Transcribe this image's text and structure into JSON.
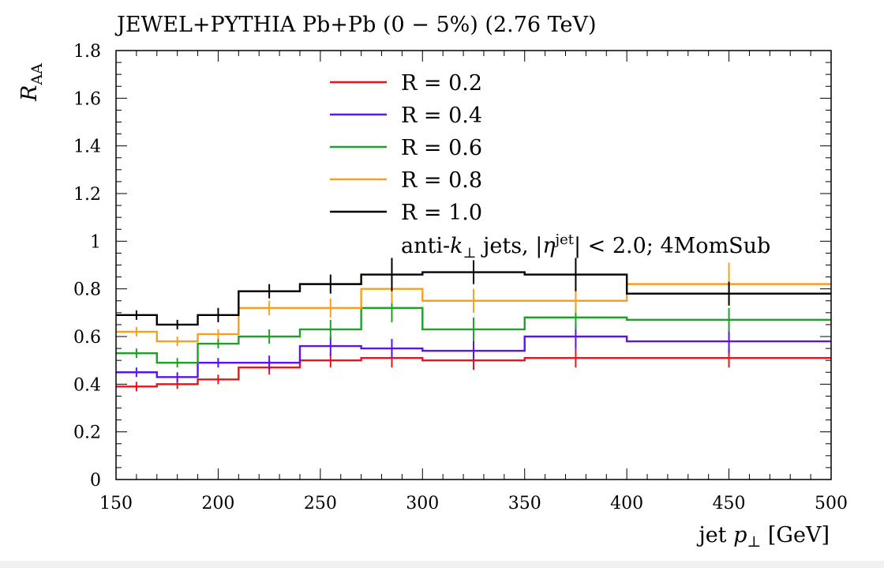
{
  "chart_data": {
    "type": "line",
    "title": "JEWEL+PYTHIA Pb+Pb (0 − 5%) (2.76 TeV)",
    "xlabel": "jet p⊥ [GeV]",
    "ylabel": "RAA",
    "xlim": [
      150,
      500
    ],
    "ylim": [
      0,
      1.8
    ],
    "x_ticks": [
      "150",
      "200",
      "250",
      "300",
      "350",
      "400",
      "450",
      "500"
    ],
    "y_ticks": [
      "0",
      "0.2",
      "0.4",
      "0.6",
      "0.8",
      "1",
      "1.2",
      "1.4",
      "1.6",
      "1.8"
    ],
    "bin_edges": [
      150,
      170,
      190,
      210,
      240,
      270,
      300,
      350,
      400,
      500
    ],
    "legend_note": "anti-k⊥ jets, |ηjet| < 2.0; 4MomSub",
    "legend_position": "top-center",
    "series": [
      {
        "name": "R = 0.2",
        "color": "#e8141c",
        "values": [
          0.39,
          0.4,
          0.42,
          0.47,
          0.5,
          0.51,
          0.5,
          0.51,
          0.51
        ],
        "errors": [
          0.02,
          0.02,
          0.02,
          0.03,
          0.03,
          0.04,
          0.04,
          0.04,
          0.04
        ]
      },
      {
        "name": "R = 0.4",
        "color": "#5b14e8",
        "values": [
          0.45,
          0.43,
          0.49,
          0.49,
          0.56,
          0.55,
          0.54,
          0.6,
          0.58
        ],
        "errors": [
          0.02,
          0.02,
          0.02,
          0.03,
          0.04,
          0.04,
          0.04,
          0.05,
          0.05
        ]
      },
      {
        "name": "R = 0.6",
        "color": "#1ea02a",
        "values": [
          0.53,
          0.49,
          0.57,
          0.6,
          0.63,
          0.72,
          0.63,
          0.68,
          0.67
        ],
        "errors": [
          0.02,
          0.02,
          0.02,
          0.03,
          0.04,
          0.06,
          0.05,
          0.05,
          0.05
        ]
      },
      {
        "name": "R = 0.8",
        "color": "#f5a01e",
        "values": [
          0.62,
          0.58,
          0.61,
          0.72,
          0.72,
          0.8,
          0.75,
          0.75,
          0.82
        ],
        "errors": [
          0.02,
          0.02,
          0.02,
          0.03,
          0.04,
          0.06,
          0.05,
          0.05,
          0.09
        ]
      },
      {
        "name": "R = 1.0",
        "color": "#000000",
        "values": [
          0.69,
          0.65,
          0.69,
          0.79,
          0.82,
          0.86,
          0.87,
          0.86,
          0.78
        ],
        "errors": [
          0.02,
          0.02,
          0.03,
          0.03,
          0.04,
          0.07,
          0.05,
          0.07,
          0.05
        ]
      }
    ]
  }
}
